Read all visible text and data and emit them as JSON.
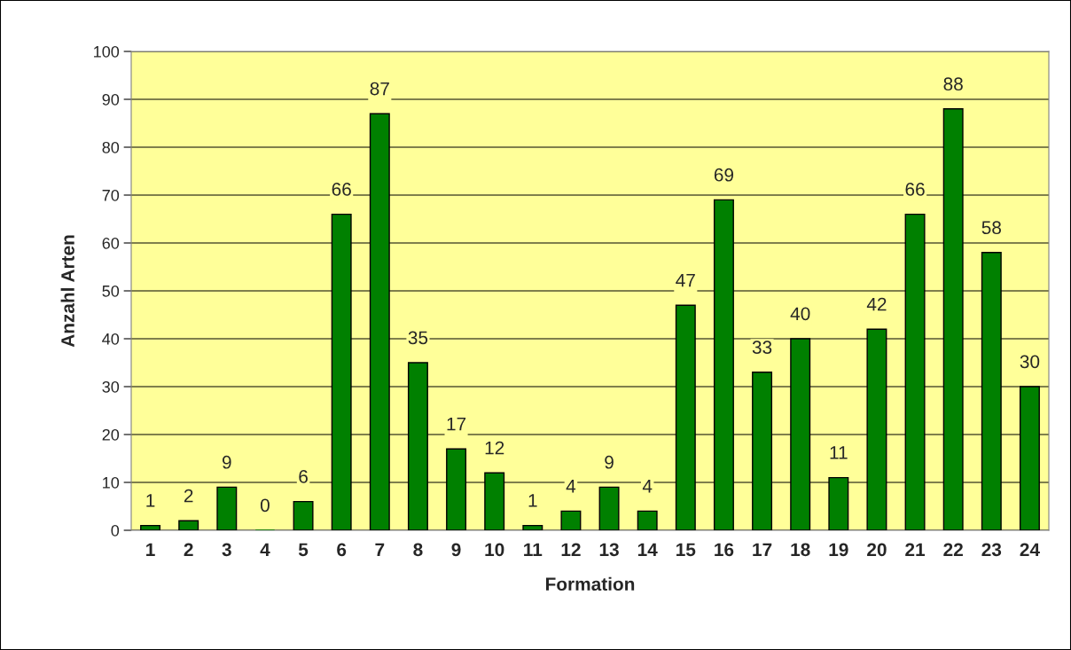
{
  "chart_data": {
    "type": "bar",
    "xlabel": "Formation",
    "ylabel": "Anzahl Arten",
    "categories": [
      "1",
      "2",
      "3",
      "4",
      "5",
      "6",
      "7",
      "8",
      "9",
      "10",
      "11",
      "12",
      "13",
      "14",
      "15",
      "16",
      "17",
      "18",
      "19",
      "20",
      "21",
      "22",
      "23",
      "24"
    ],
    "values": [
      1,
      2,
      9,
      0,
      6,
      66,
      87,
      35,
      17,
      12,
      1,
      4,
      9,
      4,
      47,
      69,
      33,
      40,
      11,
      42,
      66,
      88,
      58,
      30
    ],
    "color": "#008000",
    "ylim": [
      0,
      100
    ],
    "yticks": [
      0,
      10,
      20,
      30,
      40,
      50,
      60,
      70,
      80,
      90,
      100
    ],
    "grid": "y",
    "data_labels": true,
    "legend": false
  }
}
